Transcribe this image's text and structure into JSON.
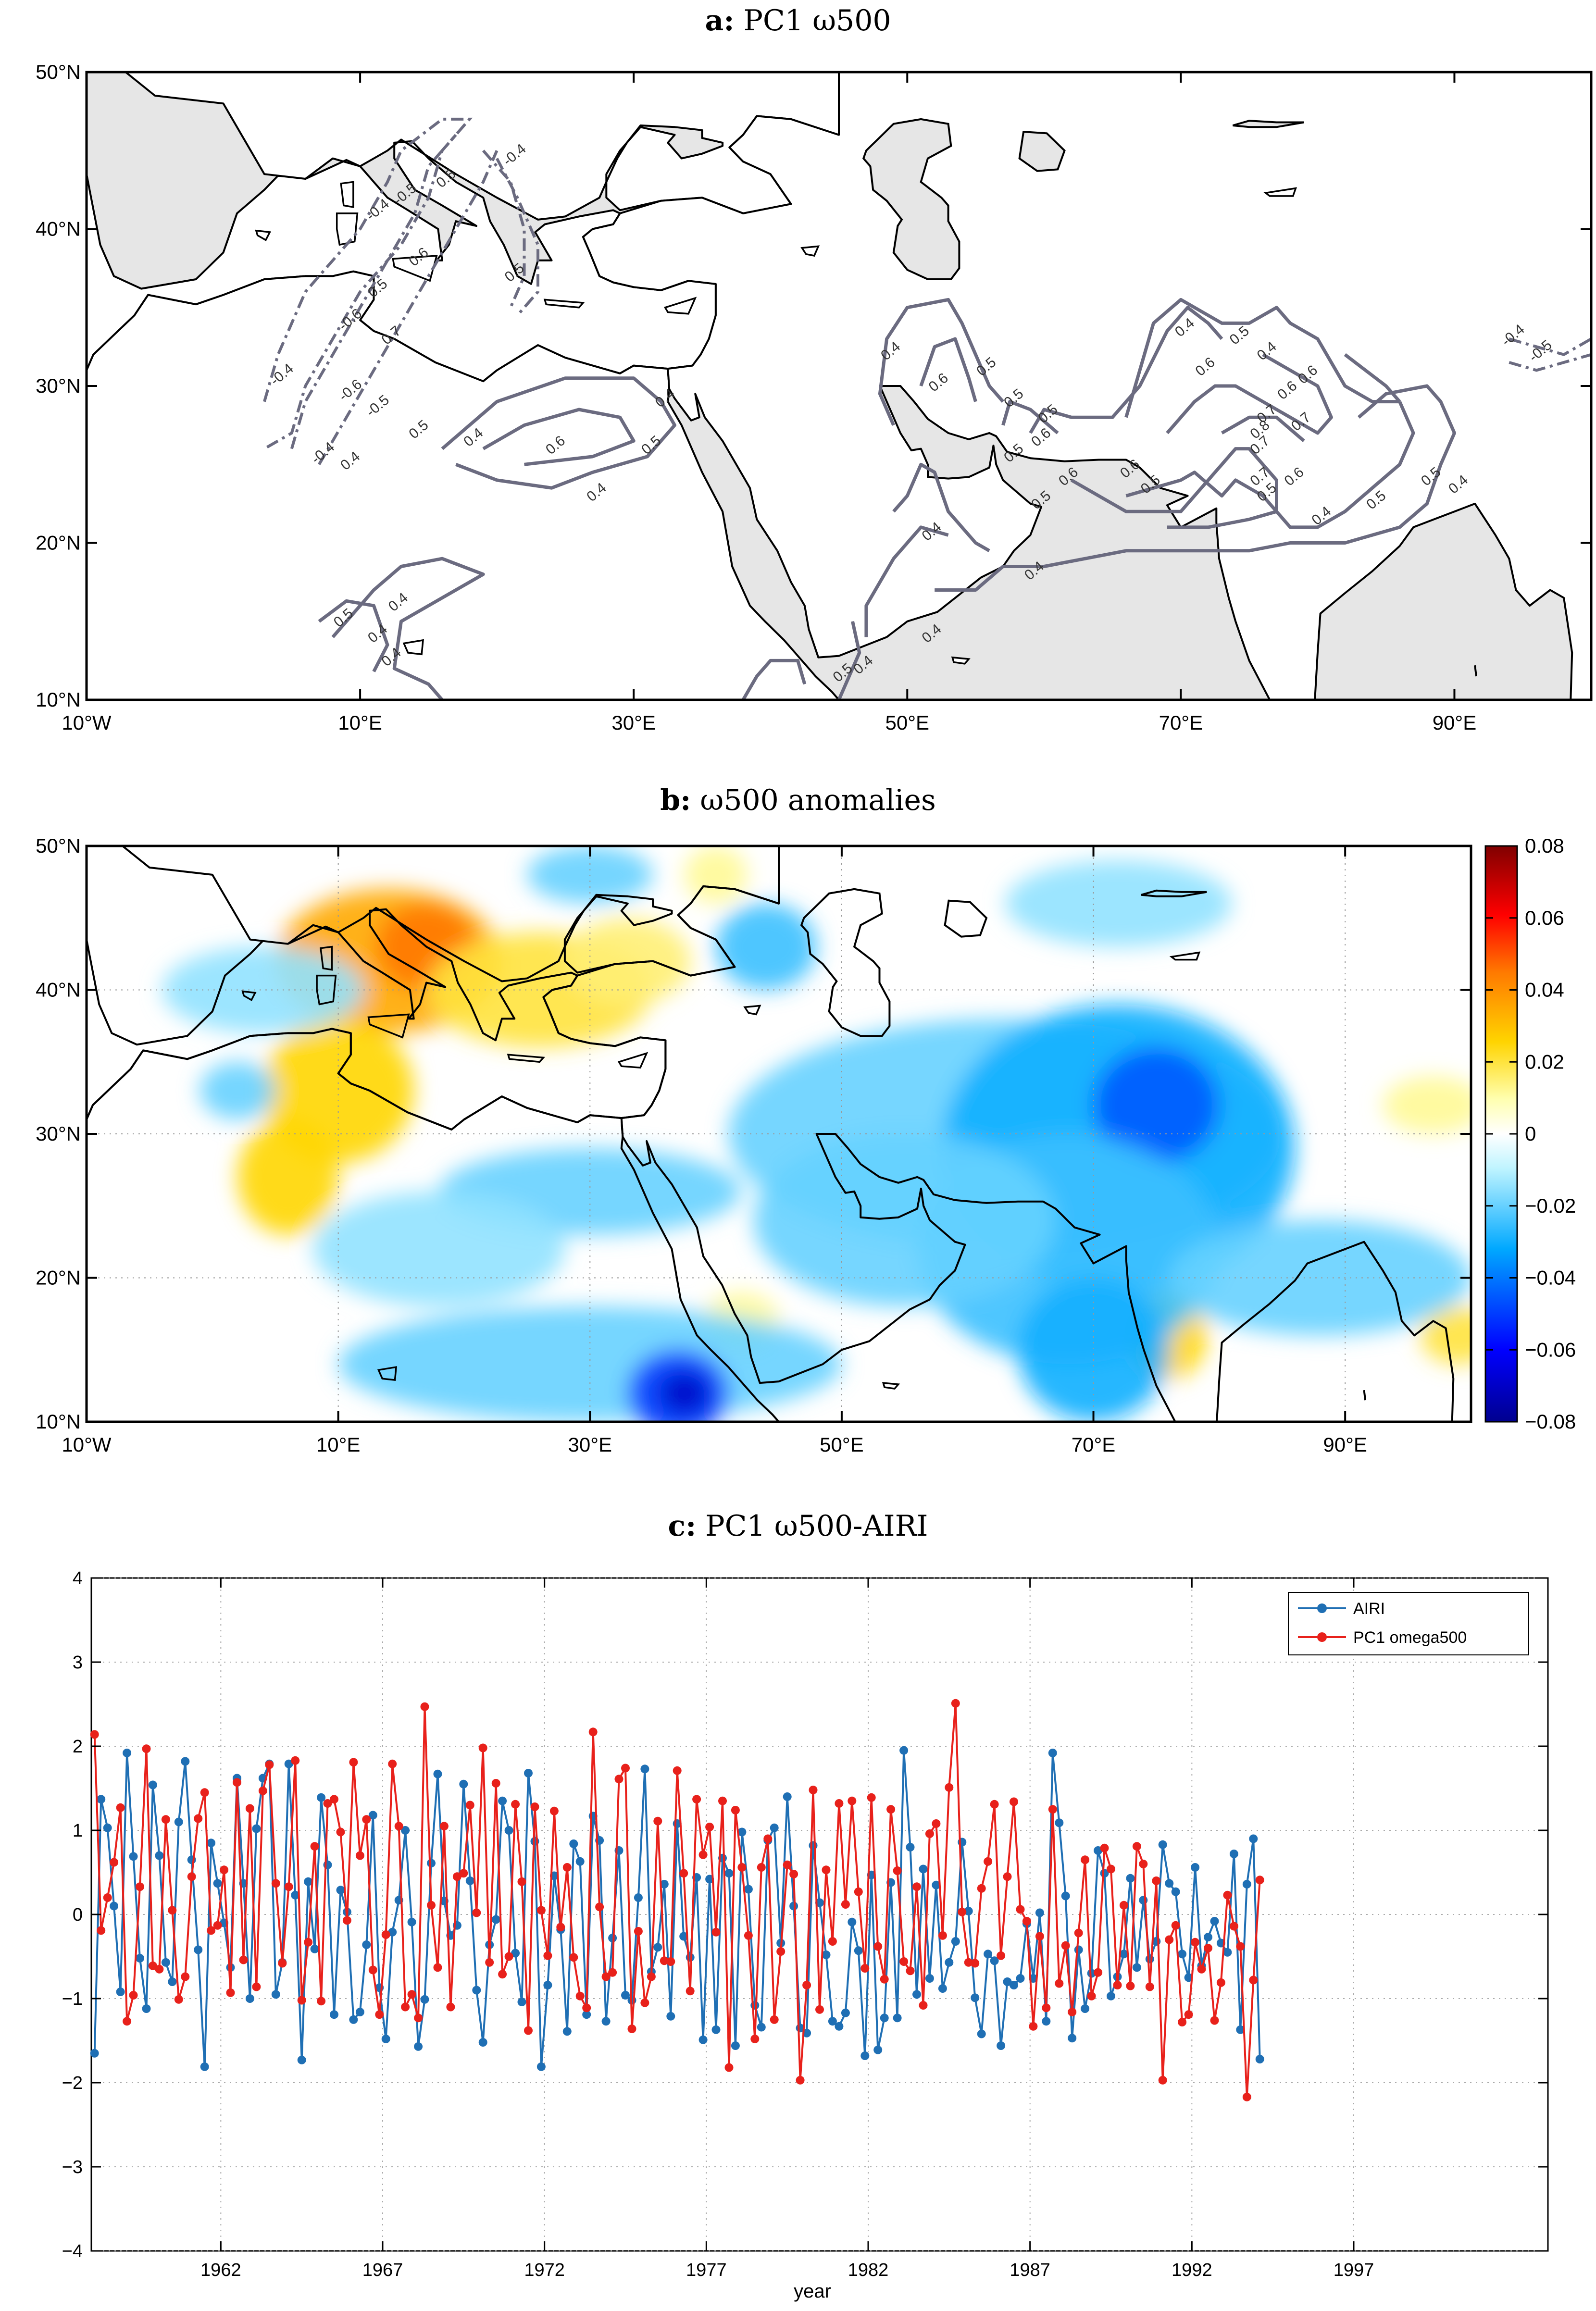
{
  "panels": {
    "a": {
      "title_bold": "a:",
      "title_rest": "PC1 ω500"
    },
    "b": {
      "title_bold": "b:",
      "title_rest": "ω500 anomalies"
    },
    "c": {
      "title_bold": "c:",
      "title_rest": "PC1 ω500-AIRI"
    }
  },
  "map_axes": {
    "lon_range": [
      -10,
      100
    ],
    "lat_range": [
      10,
      50
    ],
    "xtick_values": [
      -10,
      10,
      30,
      50,
      70,
      90
    ],
    "xtick_labels": [
      "10°W",
      "10°E",
      "30°E",
      "50°E",
      "70°E",
      "90°E"
    ],
    "ytick_values": [
      10,
      20,
      30,
      40,
      50
    ],
    "ytick_labels": [
      "10°N",
      "20°N",
      "30°N",
      "40°N",
      "50°N"
    ]
  },
  "colorbar": {
    "range": [
      -0.08,
      0.08
    ],
    "tick_values": [
      0.08,
      0.06,
      0.04,
      0.02,
      0,
      -0.02,
      -0.04,
      -0.06,
      -0.08
    ],
    "tick_labels": [
      "0.08",
      "0.06",
      "0.04",
      "0.02",
      "0",
      "−0.02",
      "−0.04",
      "−0.06",
      "−0.08"
    ]
  },
  "contour_labels": [
    {
      "lon": 16.5,
      "lat": 43.0,
      "text": "0.5"
    },
    {
      "lon": 21.5,
      "lat": 44.5,
      "text": "-0.4"
    },
    {
      "lon": 11.5,
      "lat": 41.0,
      "text": "-0.4"
    },
    {
      "lon": 14.5,
      "lat": 38.0,
      "text": "0.6"
    },
    {
      "lon": 13.5,
      "lat": 42.0,
      "text": "-0.5"
    },
    {
      "lon": 11.5,
      "lat": 36.0,
      "text": "0.5"
    },
    {
      "lon": 9.5,
      "lat": 34.0,
      "text": "-0.6"
    },
    {
      "lon": 12.5,
      "lat": 33.0,
      "text": "0.7"
    },
    {
      "lon": 4.5,
      "lat": 30.5,
      "text": "-0.4"
    },
    {
      "lon": 9.5,
      "lat": 29.5,
      "text": "-0.6"
    },
    {
      "lon": 11.5,
      "lat": 28.5,
      "text": "-0.5"
    },
    {
      "lon": 14.5,
      "lat": 27.0,
      "text": "0.5"
    },
    {
      "lon": 7.5,
      "lat": 25.5,
      "text": "-0.4"
    },
    {
      "lon": 9.5,
      "lat": 25.0,
      "text": "0.4"
    },
    {
      "lon": 21.5,
      "lat": 37.0,
      "text": "0.5"
    },
    {
      "lon": 18.5,
      "lat": 26.5,
      "text": "0.4"
    },
    {
      "lon": 24.5,
      "lat": 26.0,
      "text": "0.6"
    },
    {
      "lon": 27.5,
      "lat": 23.0,
      "text": "0.4"
    },
    {
      "lon": 31.5,
      "lat": 26.0,
      "text": "0.5"
    },
    {
      "lon": 32.5,
      "lat": 29.0,
      "text": "0.4"
    },
    {
      "lon": 9.0,
      "lat": 15.0,
      "text": "0.5"
    },
    {
      "lon": 11.5,
      "lat": 14.0,
      "text": "0.4"
    },
    {
      "lon": 13.0,
      "lat": 16.0,
      "text": "0.4"
    },
    {
      "lon": 12.5,
      "lat": 12.5,
      "text": "0.4"
    },
    {
      "lon": 49.0,
      "lat": 32.0,
      "text": "0.4"
    },
    {
      "lon": 52.5,
      "lat": 30.0,
      "text": "0.6"
    },
    {
      "lon": 56.0,
      "lat": 31.0,
      "text": "0.5"
    },
    {
      "lon": 58.0,
      "lat": 29.0,
      "text": "0.5"
    },
    {
      "lon": 60.5,
      "lat": 28.0,
      "text": "0.5"
    },
    {
      "lon": 60.0,
      "lat": 26.5,
      "text": "0.6"
    },
    {
      "lon": 58.0,
      "lat": 25.5,
      "text": "0.5"
    },
    {
      "lon": 62.0,
      "lat": 24.0,
      "text": "0.6"
    },
    {
      "lon": 60.0,
      "lat": 22.5,
      "text": "0.5"
    },
    {
      "lon": 52.0,
      "lat": 20.5,
      "text": "0.4"
    },
    {
      "lon": 52.0,
      "lat": 14.0,
      "text": "0.4"
    },
    {
      "lon": 59.5,
      "lat": 18.0,
      "text": "0.4"
    },
    {
      "lon": 47.0,
      "lat": 12.0,
      "text": "0.4"
    },
    {
      "lon": 45.5,
      "lat": 11.5,
      "text": "0.5"
    },
    {
      "lon": 70.5,
      "lat": 33.5,
      "text": "0.4"
    },
    {
      "lon": 72.0,
      "lat": 31.0,
      "text": "0.6"
    },
    {
      "lon": 74.5,
      "lat": 33.0,
      "text": "0.5"
    },
    {
      "lon": 76.5,
      "lat": 32.0,
      "text": "0.4"
    },
    {
      "lon": 76.5,
      "lat": 28.0,
      "text": "0.7"
    },
    {
      "lon": 78.0,
      "lat": 29.5,
      "text": "0.6"
    },
    {
      "lon": 76.0,
      "lat": 27.0,
      "text": "0.8"
    },
    {
      "lon": 76.0,
      "lat": 26.0,
      "text": "0.7"
    },
    {
      "lon": 79.5,
      "lat": 30.5,
      "text": "0.6"
    },
    {
      "lon": 79.0,
      "lat": 27.5,
      "text": "0.7"
    },
    {
      "lon": 66.5,
      "lat": 24.5,
      "text": "0.6"
    },
    {
      "lon": 68.0,
      "lat": 23.5,
      "text": "0.5"
    },
    {
      "lon": 76.0,
      "lat": 24.0,
      "text": "0.7"
    },
    {
      "lon": 76.5,
      "lat": 23.0,
      "text": "0.5"
    },
    {
      "lon": 78.5,
      "lat": 24.0,
      "text": "0.6"
    },
    {
      "lon": 80.5,
      "lat": 21.5,
      "text": "0.4"
    },
    {
      "lon": 84.5,
      "lat": 22.5,
      "text": "0.5"
    },
    {
      "lon": 88.5,
      "lat": 24.0,
      "text": "0.5"
    },
    {
      "lon": 90.5,
      "lat": 23.5,
      "text": "0.4"
    },
    {
      "lon": 94.5,
      "lat": 33.0,
      "text": "-0.4"
    },
    {
      "lon": 96.5,
      "lat": 32.0,
      "text": "-0.5"
    }
  ],
  "anomaly_blobs": [
    {
      "lon": 14,
      "lat": 42,
      "rx": 9,
      "ry": 5,
      "value": 0.035
    },
    {
      "lon": 17,
      "lat": 43,
      "rx": 4,
      "ry": 3,
      "value": 0.045
    },
    {
      "lon": 10,
      "lat": 33,
      "rx": 6,
      "ry": 5,
      "value": 0.025
    },
    {
      "lon": 6,
      "lat": 27,
      "rx": 4,
      "ry": 4,
      "value": 0.025
    },
    {
      "lon": 26,
      "lat": 40,
      "rx": 9,
      "ry": 4,
      "value": 0.02
    },
    {
      "lon": 33,
      "lat": 42,
      "rx": 5,
      "ry": 3,
      "value": 0.015
    },
    {
      "lon": 40,
      "lat": 48,
      "rx": 2.5,
      "ry": 2,
      "value": 0.012
    },
    {
      "lon": 97,
      "lat": 32,
      "rx": 4,
      "ry": 2,
      "value": 0.012
    },
    {
      "lon": 76,
      "lat": 16,
      "rx": 3,
      "ry": 3,
      "value": 0.025
    },
    {
      "lon": 99,
      "lat": 16,
      "rx": 3,
      "ry": 2,
      "value": 0.02
    },
    {
      "lon": 42,
      "lat": 17,
      "rx": 3,
      "ry": 2,
      "value": 0.012
    },
    {
      "lon": 63,
      "lat": 30,
      "rx": 22,
      "ry": 8,
      "value": -0.02
    },
    {
      "lon": 72,
      "lat": 29,
      "rx": 14,
      "ry": 10,
      "value": -0.03
    },
    {
      "lon": 75,
      "lat": 32,
      "rx": 5,
      "ry": 4,
      "value": -0.045
    },
    {
      "lon": 68,
      "lat": 22,
      "rx": 12,
      "ry": 8,
      "value": -0.025
    },
    {
      "lon": 70,
      "lat": 15,
      "rx": 6,
      "ry": 5,
      "value": -0.03
    },
    {
      "lon": 55,
      "lat": 24,
      "rx": 12,
      "ry": 6,
      "value": -0.02
    },
    {
      "lon": 88,
      "lat": 20,
      "rx": 12,
      "ry": 4,
      "value": -0.02
    },
    {
      "lon": 30,
      "lat": 14,
      "rx": 20,
      "ry": 4,
      "value": -0.02
    },
    {
      "lon": 37,
      "lat": 12,
      "rx": 4,
      "ry": 3,
      "value": -0.05
    },
    {
      "lon": 37.5,
      "lat": 12,
      "rx": 2,
      "ry": 1.5,
      "value": -0.07
    },
    {
      "lon": 30,
      "lat": 26,
      "rx": 12,
      "ry": 3,
      "value": -0.02
    },
    {
      "lon": 44,
      "lat": 43,
      "rx": 4,
      "ry": 3,
      "value": -0.025
    },
    {
      "lon": 30,
      "lat": 48,
      "rx": 5,
      "ry": 2,
      "value": -0.02
    },
    {
      "lon": 72,
      "lat": 46,
      "rx": 9,
      "ry": 3,
      "value": -0.015
    },
    {
      "lon": 4,
      "lat": 40,
      "rx": 8,
      "ry": 3,
      "value": -0.015
    },
    {
      "lon": 2,
      "lat": 33,
      "rx": 3,
      "ry": 2,
      "value": -0.02
    },
    {
      "lon": 18,
      "lat": 22,
      "rx": 10,
      "ry": 4,
      "value": -0.015
    }
  ],
  "chart_data": {
    "type": "line",
    "title": "PC1 ω500-AIRI",
    "xlabel": "year",
    "ylabel": "",
    "xlim": [
      1958,
      2003
    ],
    "ylim": [
      -4,
      4
    ],
    "x_start": 1958.1,
    "x_step": 0.2,
    "xtick_values": [
      1962,
      1967,
      1972,
      1977,
      1982,
      1987,
      1992,
      1997
    ],
    "xtick_labels": [
      "1962",
      "1967",
      "1972",
      "1977",
      "1982",
      "1987",
      "1992",
      "1997"
    ],
    "ytick_values": [
      4,
      3,
      2,
      1,
      0,
      -1,
      -2,
      -3,
      -4
    ],
    "ytick_labels": [
      "4",
      "3",
      "2",
      "1",
      "0",
      "−1",
      "−2",
      "−3",
      "−4"
    ],
    "grid": true,
    "legend_position": "top-right",
    "series": [
      {
        "name": "AIRI",
        "color": "#1f6fb4",
        "values": [
          -1.65,
          1.37,
          1.03,
          0.1,
          -0.92,
          1.92,
          0.69,
          -0.52,
          -1.12,
          1.54,
          0.7,
          -0.57,
          -0.8,
          1.1,
          1.82,
          0.65,
          -0.42,
          -1.81,
          0.85,
          0.37,
          -0.1,
          -0.63,
          1.62,
          0.37,
          -1.0,
          1.02,
          1.62,
          1.79,
          -0.95,
          -0.57,
          1.79,
          0.23,
          -1.73,
          0.39,
          -0.41,
          1.39,
          0.59,
          -1.19,
          0.29,
          0.03,
          -1.25,
          -1.16,
          -0.36,
          1.18,
          -0.87,
          -1.48,
          -0.21,
          0.17,
          1.0,
          -0.09,
          -1.57,
          -1.01,
          0.61,
          1.67,
          0.16,
          -0.25,
          -0.13,
          1.55,
          0.4,
          -0.9,
          -1.52,
          -0.36,
          -0.06,
          1.35,
          1.0,
          -0.46,
          -1.04,
          1.68,
          0.87,
          -1.81,
          -0.84,
          0.46,
          -0.18,
          -1.39,
          0.84,
          0.63,
          -1.19,
          1.17,
          0.88,
          -1.27,
          -0.28,
          0.76,
          -0.96,
          -1.02,
          0.2,
          1.73,
          -0.68,
          -0.39,
          0.36,
          -1.21,
          1.08,
          -0.26,
          -0.51,
          0.44,
          -1.49,
          0.42,
          -1.37,
          0.67,
          0.49,
          -1.56,
          0.98,
          0.3,
          -1.08,
          -1.34,
          0.88,
          1.03,
          -0.34,
          1.4,
          0.1,
          -1.35,
          -1.41,
          0.82,
          0.14,
          -0.48,
          -1.27,
          -1.33,
          -1.17,
          -0.09,
          -0.43,
          -1.68,
          0.47,
          -1.61,
          -1.23,
          0.38,
          -1.23,
          1.95,
          0.8,
          -0.95,
          0.54,
          -0.76,
          0.35,
          -0.88,
          -0.57,
          -0.32,
          0.86,
          0.04,
          -0.99,
          -1.42,
          -0.47,
          -0.55,
          -1.56,
          -0.8,
          -0.84,
          -0.76,
          -0.11,
          -0.76,
          0.02,
          -1.27,
          1.92,
          1.09,
          0.22,
          -1.47,
          -0.42,
          -1.12,
          -0.7,
          0.76,
          0.49,
          -0.97,
          -0.74,
          -0.47,
          0.43,
          -0.63,
          0.17,
          -0.53,
          -0.32,
          0.83,
          0.37,
          0.27,
          -0.47,
          -0.75,
          0.56,
          -0.61,
          -0.27,
          -0.08,
          -0.34,
          -0.45,
          0.72,
          -1.37,
          0.36,
          0.9,
          -1.72
        ]
      },
      {
        "name": "PC1 omega500",
        "color": "#e8211b",
        "values": [
          2.14,
          -0.19,
          0.2,
          0.62,
          1.27,
          -1.27,
          -0.96,
          0.33,
          1.97,
          -0.61,
          -0.65,
          1.13,
          0.05,
          -1.01,
          -0.74,
          0.45,
          1.14,
          1.45,
          -0.19,
          -0.13,
          0.53,
          -0.93,
          1.57,
          -0.54,
          1.26,
          -0.86,
          1.47,
          1.78,
          0.37,
          -0.58,
          0.33,
          1.83,
          -1.02,
          -0.33,
          0.81,
          -1.03,
          1.32,
          1.37,
          0.98,
          -0.07,
          1.81,
          0.7,
          1.13,
          -0.66,
          -1.19,
          -0.24,
          1.79,
          1.05,
          -1.1,
          -0.95,
          -1.23,
          2.47,
          0.11,
          -0.63,
          1.05,
          -1.1,
          0.45,
          0.49,
          1.3,
          0.02,
          1.98,
          -0.57,
          1.56,
          -0.71,
          -0.5,
          1.31,
          0.39,
          -1.38,
          1.28,
          0.05,
          -0.49,
          1.23,
          -0.15,
          0.56,
          -0.51,
          -0.97,
          -1.11,
          2.17,
          0.09,
          -0.74,
          -0.69,
          1.61,
          1.74,
          -1.36,
          -0.2,
          -1.05,
          -0.74,
          1.11,
          -0.55,
          -0.56,
          1.71,
          0.49,
          -0.91,
          1.37,
          0.71,
          1.04,
          -0.21,
          1.35,
          -1.82,
          1.24,
          0.56,
          -0.25,
          -1.48,
          0.56,
          0.9,
          -1.25,
          -0.44,
          0.59,
          0.48,
          -1.97,
          -0.84,
          1.48,
          -1.13,
          0.53,
          -0.32,
          1.32,
          0.12,
          1.35,
          0.27,
          -0.64,
          1.39,
          -0.38,
          -0.77,
          1.25,
          0.52,
          -0.56,
          -0.67,
          0.33,
          -1.08,
          0.96,
          1.08,
          -0.25,
          1.51,
          2.51,
          0.03,
          -0.57,
          -0.58,
          0.31,
          0.63,
          1.31,
          -0.49,
          0.45,
          1.34,
          0.06,
          -0.08,
          -1.33,
          -0.26,
          -1.11,
          1.25,
          -0.82,
          -0.37,
          -1.16,
          -0.22,
          0.65,
          -0.97,
          -0.69,
          0.79,
          0.54,
          -0.84,
          0.11,
          -0.85,
          0.81,
          0.6,
          -0.86,
          0.4,
          -1.97,
          -0.3,
          -0.13,
          -1.28,
          -1.19,
          -0.33,
          -0.65,
          -0.4,
          -1.26,
          -0.81,
          0.23,
          -0.14,
          -0.38,
          -2.17,
          -0.78,
          0.41
        ]
      }
    ]
  }
}
